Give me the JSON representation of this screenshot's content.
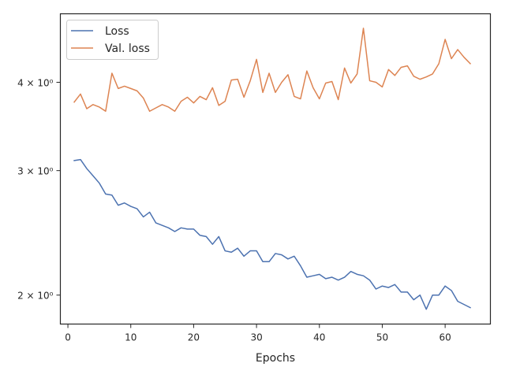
{
  "chart_data": {
    "type": "line",
    "title": "",
    "xlabel": "Epochs",
    "ylabel": "",
    "xlim": [
      -1.2,
      67.2
    ],
    "ylim": [
      1.82,
      5.0
    ],
    "yscale": "log",
    "grid": false,
    "legend_position": "top-left",
    "x_ticks": [
      0,
      10,
      20,
      30,
      40,
      50,
      60
    ],
    "x_tick_labels": [
      "0",
      "10",
      "20",
      "30",
      "40",
      "50",
      "60"
    ],
    "y_ticks": [
      2,
      3,
      4
    ],
    "y_tick_labels": [
      "2 × 10⁰",
      "3 × 10⁰",
      "4 × 10⁰"
    ],
    "x": [
      1,
      2,
      3,
      4,
      5,
      6,
      7,
      8,
      9,
      10,
      11,
      12,
      13,
      14,
      15,
      16,
      17,
      18,
      19,
      20,
      21,
      22,
      23,
      24,
      25,
      26,
      27,
      28,
      29,
      30,
      31,
      32,
      33,
      34,
      35,
      36,
      37,
      38,
      39,
      40,
      41,
      42,
      43,
      44,
      45,
      46,
      47,
      48,
      49,
      50,
      51,
      52,
      53,
      54,
      55,
      56,
      57,
      58,
      59,
      60,
      61,
      62,
      63,
      64
    ],
    "series": [
      {
        "name": "Loss",
        "color": "#4c72b0",
        "values": [
          3.1,
          3.11,
          3.02,
          2.95,
          2.88,
          2.78,
          2.77,
          2.68,
          2.7,
          2.67,
          2.65,
          2.58,
          2.62,
          2.53,
          2.51,
          2.49,
          2.46,
          2.49,
          2.48,
          2.48,
          2.43,
          2.42,
          2.36,
          2.42,
          2.31,
          2.3,
          2.33,
          2.27,
          2.31,
          2.31,
          2.23,
          2.23,
          2.29,
          2.28,
          2.25,
          2.27,
          2.2,
          2.12,
          2.13,
          2.14,
          2.11,
          2.12,
          2.1,
          2.12,
          2.16,
          2.14,
          2.13,
          2.1,
          2.04,
          2.06,
          2.05,
          2.07,
          2.02,
          2.02,
          1.97,
          2.0,
          1.91,
          2.0,
          2.0,
          2.06,
          2.03,
          1.96,
          1.94,
          1.92
        ]
      },
      {
        "name": "Val. loss",
        "color": "#dd8452",
        "values": [
          3.75,
          3.85,
          3.67,
          3.72,
          3.69,
          3.64,
          4.12,
          3.92,
          3.95,
          3.92,
          3.89,
          3.8,
          3.64,
          3.68,
          3.72,
          3.69,
          3.64,
          3.76,
          3.81,
          3.74,
          3.82,
          3.78,
          3.93,
          3.71,
          3.76,
          4.03,
          4.04,
          3.81,
          4.02,
          4.31,
          3.87,
          4.12,
          3.87,
          4.0,
          4.1,
          3.82,
          3.79,
          4.15,
          3.93,
          3.79,
          3.99,
          4.01,
          3.78,
          4.19,
          3.99,
          4.11,
          4.77,
          4.02,
          4.0,
          3.94,
          4.17,
          4.09,
          4.2,
          4.22,
          4.08,
          4.04,
          4.07,
          4.11,
          4.25,
          4.6,
          4.32,
          4.45,
          4.34,
          4.25
        ]
      }
    ]
  }
}
